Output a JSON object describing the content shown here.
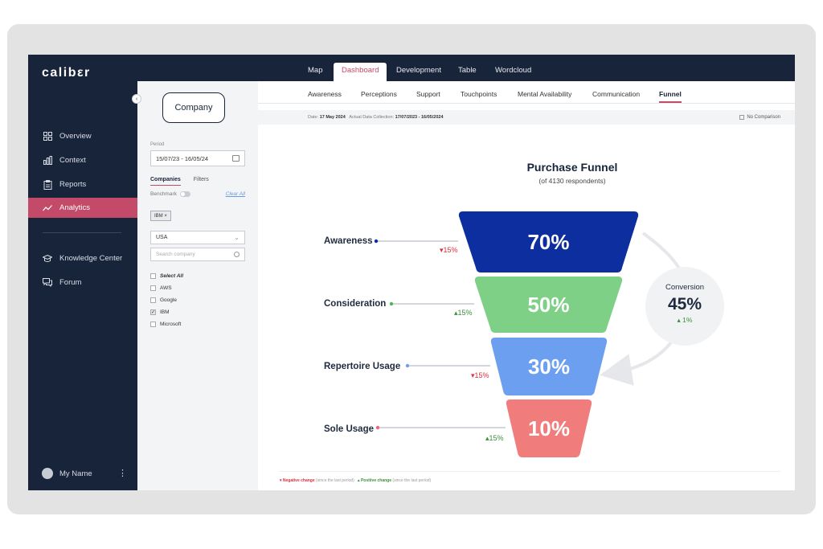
{
  "app": {
    "logo": "calibεr"
  },
  "sidebar": {
    "items": [
      {
        "label": "Overview",
        "icon": "grid-icon"
      },
      {
        "label": "Context",
        "icon": "bar-chart-icon"
      },
      {
        "label": "Reports",
        "icon": "clipboard-icon"
      },
      {
        "label": "Analytics",
        "icon": "trend-icon",
        "active": true
      },
      {
        "label": "Knowledge Center",
        "icon": "graduation-cap-icon"
      },
      {
        "label": "Forum",
        "icon": "chat-icon"
      }
    ],
    "user": {
      "name": "My Name"
    }
  },
  "panel": {
    "company_label": "Company",
    "period_label": "Period",
    "period_value": "15/07/23 - 16/05/24",
    "tabs": [
      "Companies",
      "Filters"
    ],
    "benchmark_label": "Benchmark",
    "clear_all": "Clear All",
    "chip": "IBM ×",
    "country": "USA",
    "search_placeholder": "Search company",
    "options": [
      {
        "label": "Select All",
        "checked": false
      },
      {
        "label": "AWS",
        "checked": false
      },
      {
        "label": "Google",
        "checked": false
      },
      {
        "label": "IBM",
        "checked": true
      },
      {
        "label": "Microsoft",
        "checked": false
      }
    ]
  },
  "topnav": {
    "tabs": [
      "Map",
      "Dashboard",
      "Development",
      "Table",
      "Wordcloud"
    ],
    "active": "Dashboard"
  },
  "subnav": {
    "tabs": [
      "Awareness",
      "Perceptions",
      "Support",
      "Touchpoints",
      "Mental Availability",
      "Communication",
      "Funnel"
    ],
    "active": "Funnel"
  },
  "datebar": {
    "date_label": "Date:",
    "date_value": "17 May 2024",
    "collection_label": "Actual Data Collection:",
    "collection_value": "17/07/2023 - 16/05/2024",
    "no_comparison": "No Comparison"
  },
  "funnel": {
    "title": "Purchase Funnel",
    "subtitle": "(of 4130 respondents)",
    "stages": [
      {
        "label": "Awareness",
        "value": "70%",
        "change": "15%",
        "direction": "down",
        "color": "#0d2e9e",
        "dot": "#0d2e9e"
      },
      {
        "label": "Consideration",
        "value": "50%",
        "change": "15%",
        "direction": "up",
        "color": "#7ed087",
        "dot": "#55b35f"
      },
      {
        "label": "Repertoire Usage",
        "value": "30%",
        "change": "15%",
        "direction": "down",
        "color": "#6d9ff0",
        "dot": "#6d9ff0"
      },
      {
        "label": "Sole Usage",
        "value": "10%",
        "change": "15%",
        "direction": "up",
        "color": "#f07c7c",
        "dot": "#e86a7c"
      }
    ],
    "conversion": {
      "label": "Conversion",
      "value": "45%",
      "change": "1%"
    }
  },
  "legend": {
    "negative": "Negative change",
    "negative_note": "(since the last period)",
    "positive": "Positive change",
    "positive_note": "(since the last period)"
  }
}
